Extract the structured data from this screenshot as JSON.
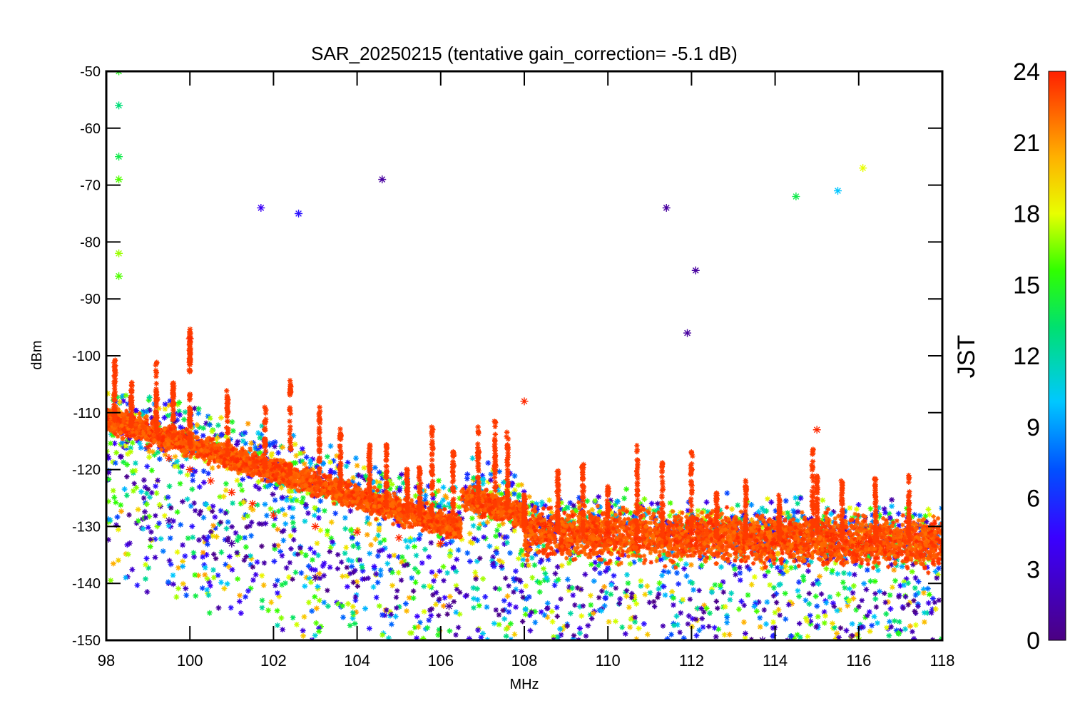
{
  "chart_data": {
    "type": "scatter",
    "title": "SAR_20250215 (tentative gain_correction= -5.1 dB)",
    "xlabel": "MHz",
    "ylabel": "dBm",
    "xlim": [
      98,
      118
    ],
    "ylim": [
      -150,
      -50
    ],
    "xticks": [
      "98",
      "100",
      "102",
      "104",
      "106",
      "108",
      "110",
      "112",
      "114",
      "116",
      "118"
    ],
    "yticks": [
      "-50",
      "-60",
      "-70",
      "-80",
      "-90",
      "-100",
      "-110",
      "-120",
      "-130",
      "-140",
      "-150"
    ],
    "colorbar": {
      "label": "JST",
      "range": [
        0,
        24
      ],
      "ticks": [
        "0",
        "3",
        "6",
        "9",
        "12",
        "15",
        "18",
        "21",
        "24"
      ],
      "colormap": "rainbow (purple → blue → cyan → green → yellow → orange → red)"
    },
    "marker": "asterisk",
    "grid": false,
    "series": [
      {
        "values_described_as": "dense noise floor; strongest density at JST 22-24 (red)",
        "points": [
          {
            "x": 98.0,
            "y": -111,
            "jst": 24
          },
          {
            "x": 98.5,
            "y": -114,
            "jst": 24
          },
          {
            "x": 99.0,
            "y": -116,
            "jst": 24
          },
          {
            "x": 99.5,
            "y": -118,
            "jst": 24
          },
          {
            "x": 100.0,
            "y": -120,
            "jst": 24
          },
          {
            "x": 100.5,
            "y": -122,
            "jst": 24
          },
          {
            "x": 101.0,
            "y": -124,
            "jst": 24
          },
          {
            "x": 101.5,
            "y": -126,
            "jst": 24
          },
          {
            "x": 102.0,
            "y": -128,
            "jst": 24
          },
          {
            "x": 103.0,
            "y": -130,
            "jst": 24
          },
          {
            "x": 104.0,
            "y": -131,
            "jst": 24
          },
          {
            "x": 105.0,
            "y": -132,
            "jst": 24
          },
          {
            "x": 106.0,
            "y": -133,
            "jst": 24
          },
          {
            "x": 107.0,
            "y": -128,
            "jst": 24
          },
          {
            "x": 108.5,
            "y": -130,
            "jst": 24
          },
          {
            "x": 110.0,
            "y": -131,
            "jst": 24
          },
          {
            "x": 112.0,
            "y": -131,
            "jst": 24
          },
          {
            "x": 114.0,
            "y": -133,
            "jst": 24
          },
          {
            "x": 116.0,
            "y": -133,
            "jst": 24
          },
          {
            "x": 118.0,
            "y": -133,
            "jst": 24
          },
          {
            "x": 100.0,
            "y": -97,
            "jst": 24
          },
          {
            "x": 108.0,
            "y": -108,
            "jst": 24
          },
          {
            "x": 115.0,
            "y": -113,
            "jst": 24
          },
          {
            "x": 98.3,
            "y": -50,
            "jst": 15
          },
          {
            "x": 98.3,
            "y": -56,
            "jst": 13
          },
          {
            "x": 98.3,
            "y": -65,
            "jst": 14
          },
          {
            "x": 98.3,
            "y": -69,
            "jst": 16
          },
          {
            "x": 98.3,
            "y": -82,
            "jst": 17
          },
          {
            "x": 98.3,
            "y": -86,
            "jst": 16
          },
          {
            "x": 104.6,
            "y": -69,
            "jst": 1
          },
          {
            "x": 101.7,
            "y": -74,
            "jst": 4
          },
          {
            "x": 102.6,
            "y": -75,
            "jst": 5
          },
          {
            "x": 111.4,
            "y": -74,
            "jst": 1
          },
          {
            "x": 116.1,
            "y": -67,
            "jst": 18
          },
          {
            "x": 115.5,
            "y": -71,
            "jst": 10
          },
          {
            "x": 114.5,
            "y": -72,
            "jst": 14
          },
          {
            "x": 111.9,
            "y": -96,
            "jst": 1
          },
          {
            "x": 112.1,
            "y": -85,
            "jst": 1
          },
          {
            "x": 106.2,
            "y": -144,
            "jst": 1
          },
          {
            "x": 113.7,
            "y": -150,
            "jst": 1
          },
          {
            "x": 116.0,
            "y": -150,
            "jst": 17
          },
          {
            "x": 99.5,
            "y": -129,
            "jst": 1
          },
          {
            "x": 101.0,
            "y": -133,
            "jst": 1
          },
          {
            "x": 103.0,
            "y": -139,
            "jst": 1
          }
        ]
      }
    ]
  }
}
